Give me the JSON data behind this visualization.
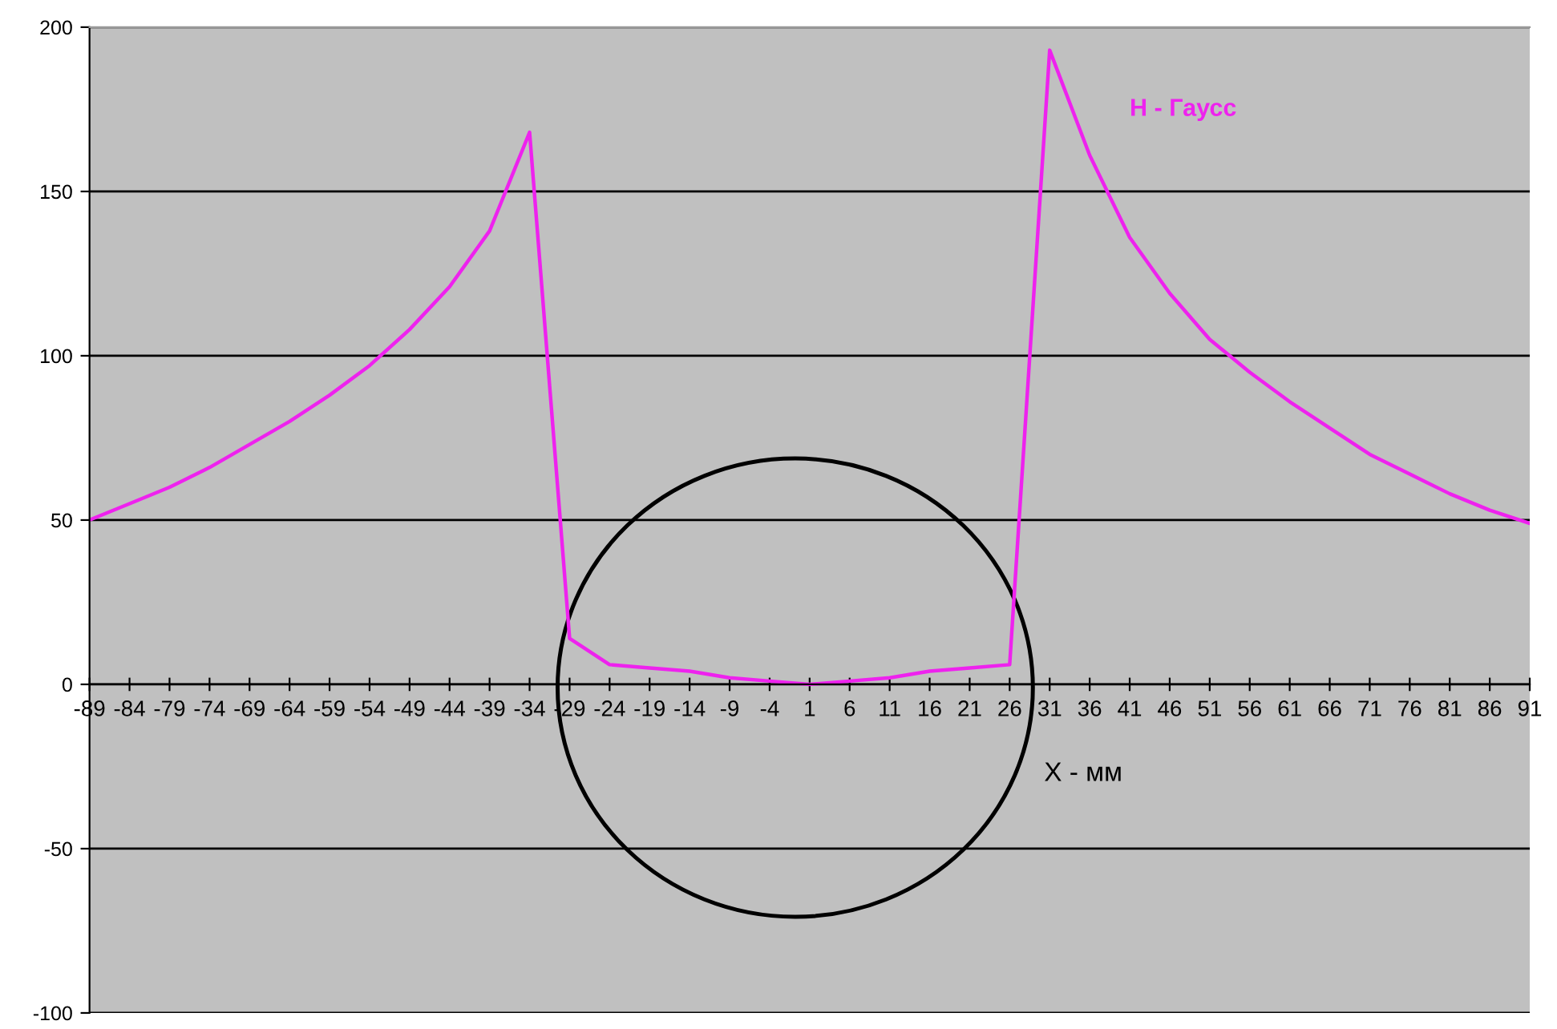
{
  "chart_data": {
    "type": "line",
    "xlabel": "X - мм",
    "categories": [
      "-89",
      "-84",
      "-79",
      "-74",
      "-69",
      "-64",
      "-59",
      "-54",
      "-49",
      "-44",
      "-39",
      "-34",
      "-29",
      "-24",
      "-19",
      "-14",
      "-9",
      "-4",
      "1",
      "6",
      "11",
      "16",
      "21",
      "26",
      "31",
      "36",
      "41",
      "46",
      "51",
      "56",
      "61",
      "66",
      "71",
      "76",
      "81",
      "86",
      "91"
    ],
    "series": [
      {
        "name": "H - Гаусс",
        "color": "#ee22ee",
        "values": [
          50,
          55,
          60,
          66,
          73,
          80,
          88,
          97,
          108,
          121,
          138,
          168,
          14,
          6,
          5,
          4,
          2,
          1,
          0,
          1,
          2,
          4,
          5,
          6,
          193,
          161,
          136,
          119,
          105,
          95,
          86,
          78,
          70,
          64,
          58,
          53,
          49
        ]
      }
    ],
    "ylim": [
      -100,
      200
    ],
    "yticks": [
      -100,
      -50,
      0,
      50,
      100,
      150,
      200
    ],
    "grid": "y",
    "legend": false,
    "marker": "none",
    "line_style": "solid"
  }
}
